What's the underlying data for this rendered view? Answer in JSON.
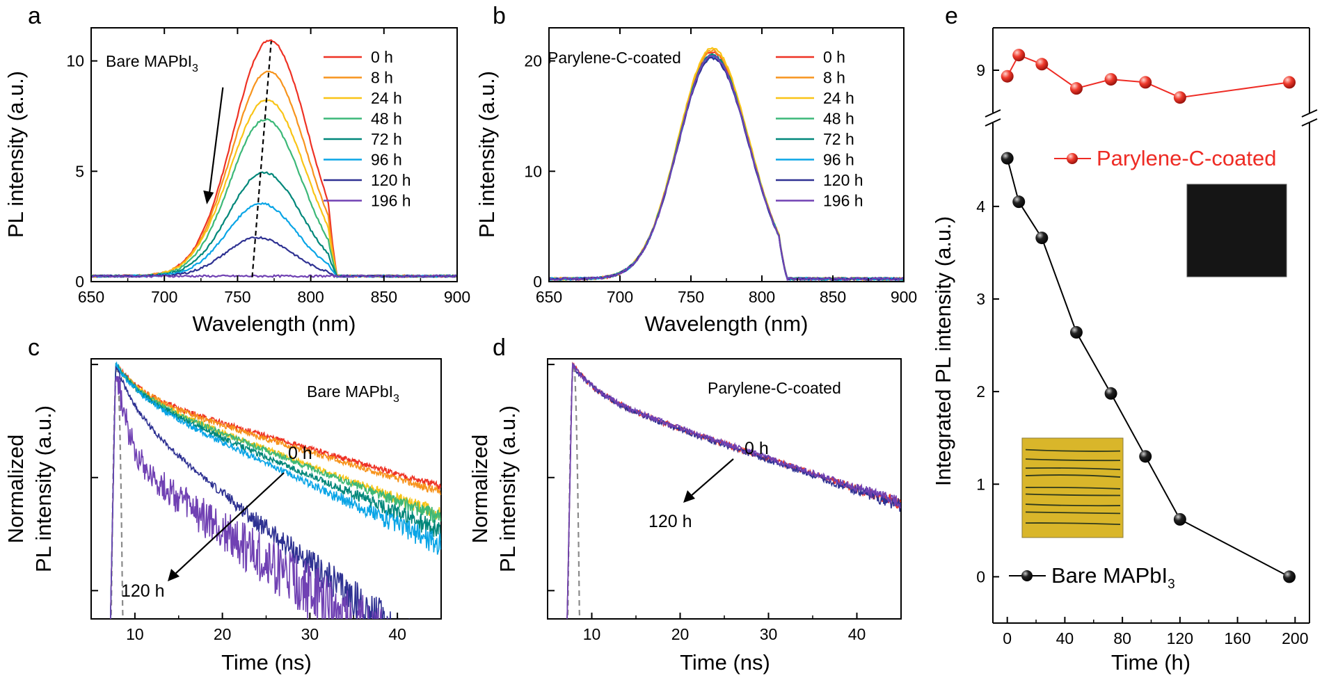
{
  "panel_letters": [
    "a",
    "b",
    "c",
    "d",
    "e"
  ],
  "sample_labels": {
    "bare_main": "Bare MAPbI",
    "bare_sub": "3",
    "coated": "Parylene-C-coated"
  },
  "colors": {
    "0 h": "#ee3224",
    "8 h": "#f7941d",
    "24 h": "#f9c416",
    "48 h": "#3cb878",
    "72 h": "#00877a",
    "96 h": "#0aa5e6",
    "120 h": "#2e3192",
    "196 h": "#7041b3",
    "irf": "#8a8a8a",
    "coated_series": "#ee2b24",
    "bare_series": "#000000",
    "photo_bare": "#d9b62a",
    "photo_coated": "#151515"
  },
  "chart_data": [
    {
      "panel": "a",
      "type": "line",
      "xlabel": "Wavelength (nm)",
      "ylabel": "PL intensity (a.u.)",
      "xlim": [
        650,
        900
      ],
      "ylim": [
        0,
        11.5
      ],
      "xticks": [
        650,
        700,
        750,
        800,
        850,
        900
      ],
      "yticks": [
        0,
        5,
        10
      ],
      "legend": [
        "0 h",
        "8 h",
        "24 h",
        "48 h",
        "72 h",
        "96 h",
        "120 h",
        "196 h"
      ],
      "peaks": [
        {
          "time": "0 h",
          "peak_nm": 772,
          "height": 10.7,
          "width": 25
        },
        {
          "time": "8 h",
          "peak_nm": 771,
          "height": 9.3,
          "width": 25
        },
        {
          "time": "24 h",
          "peak_nm": 770,
          "height": 8.0,
          "width": 25
        },
        {
          "time": "48 h",
          "peak_nm": 769,
          "height": 7.1,
          "width": 24
        },
        {
          "time": "72 h",
          "peak_nm": 768,
          "height": 4.7,
          "width": 24
        },
        {
          "time": "96 h",
          "peak_nm": 766,
          "height": 3.3,
          "width": 23
        },
        {
          "time": "120 h",
          "peak_nm": 764,
          "height": 1.75,
          "width": 22
        },
        {
          "time": "196 h",
          "peak_nm": 760,
          "height": 0,
          "width": 20
        }
      ],
      "baseline": 0.25,
      "peak_trend_line": [
        [
          760,
          0.2
        ],
        [
          773,
          10.9
        ]
      ],
      "arrow": [
        [
          740,
          8.8
        ],
        [
          729,
          3.5
        ]
      ],
      "label": "Bare MAPbI3"
    },
    {
      "panel": "b",
      "type": "line",
      "xlabel": "Wavelength (nm)",
      "ylabel": "PL intensity (a.u.)",
      "xlim": [
        650,
        900
      ],
      "ylim": [
        0,
        23
      ],
      "xticks": [
        650,
        700,
        750,
        800,
        850,
        900
      ],
      "yticks": [
        0,
        10,
        20
      ],
      "legend": [
        "0 h",
        "8 h",
        "24 h",
        "48 h",
        "72 h",
        "96 h",
        "120 h",
        "196 h"
      ],
      "peaks": [
        {
          "time": "0 h",
          "peak_nm": 765,
          "height": 20.6
        },
        {
          "time": "8 h",
          "peak_nm": 765,
          "height": 20.7
        },
        {
          "time": "24 h",
          "peak_nm": 765,
          "height": 20.9
        },
        {
          "time": "48 h",
          "peak_nm": 765,
          "height": 20.2
        },
        {
          "time": "72 h",
          "peak_nm": 765,
          "height": 20.3
        },
        {
          "time": "96 h",
          "peak_nm": 765,
          "height": 20.1
        },
        {
          "time": "120 h",
          "peak_nm": 765,
          "height": 20.0
        },
        {
          "time": "196 h",
          "peak_nm": 765,
          "height": 20.2
        }
      ],
      "baseline": 0.25,
      "label": "Parylene-C-coated"
    },
    {
      "panel": "c",
      "type": "line",
      "xlabel": "Time (ns)",
      "ylabel_lines": [
        "Normalized",
        "PL intensity (a.u.)"
      ],
      "xlim": [
        5,
        45
      ],
      "xticks": [
        10,
        20,
        30,
        40
      ],
      "log_y": true,
      "ylim_log10": [
        -2.25,
        0.05
      ],
      "decay_series": [
        {
          "time": "0 h",
          "endpoint_log10": -1.08
        },
        {
          "time": "8 h",
          "endpoint_log10": -1.13
        },
        {
          "time": "24 h",
          "endpoint_log10": -1.33
        },
        {
          "time": "48 h",
          "endpoint_log10": -1.36
        },
        {
          "time": "72 h",
          "endpoint_log10": -1.48
        },
        {
          "time": "96 h",
          "endpoint_log10": -1.6
        },
        {
          "time": "120 h",
          "endpoint_log10": -2.25
        },
        {
          "time": "196 h",
          "endpoint_log10": -2.25
        }
      ],
      "annotations": [
        "0 h",
        "120 h"
      ],
      "label": "Bare MAPbI3"
    },
    {
      "panel": "d",
      "type": "line",
      "xlabel": "Time (ns)",
      "ylabel_lines": [
        "Normalized",
        "PL intensity (a.u.)"
      ],
      "xlim": [
        5,
        45
      ],
      "xticks": [
        10,
        20,
        30,
        40
      ],
      "log_y": true,
      "ylim_log10": [
        -2.25,
        0.05
      ],
      "decay_series": [
        {
          "time": "0 h",
          "endpoint_log10": -1.23
        },
        {
          "time": "120 h",
          "endpoint_log10": -1.25
        },
        {
          "time": "196 h",
          "endpoint_log10": -1.22
        }
      ],
      "annotations": [
        "0 h",
        "120 h"
      ],
      "label": "Parylene-C-coated"
    },
    {
      "panel": "e",
      "type": "scatter",
      "xlabel": "Time (h)",
      "ylabel": "Integrated PL intensity (a.u.)",
      "xlim": [
        -10,
        210
      ],
      "xticks": [
        0,
        40,
        80,
        120,
        160,
        200
      ],
      "y_axis_break": true,
      "lower_ylim": [
        -0.5,
        4.9
      ],
      "lower_yticks": [
        0,
        1,
        2,
        3,
        4
      ],
      "upper_ylim": [
        8.3,
        9.7
      ],
      "upper_yticks": [
        9
      ],
      "series": [
        {
          "name": "Parylene-C-coated",
          "x": [
            0,
            8,
            24,
            48,
            72,
            96,
            120,
            196
          ],
          "y": [
            8.9,
            9.25,
            9.1,
            8.7,
            8.85,
            8.8,
            8.55,
            8.8
          ]
        },
        {
          "name": "Bare MAPbI3",
          "x": [
            0,
            8,
            24,
            48,
            72,
            96,
            120,
            196
          ],
          "y": [
            4.52,
            4.05,
            3.66,
            2.64,
            1.98,
            1.3,
            0.62,
            0.0
          ]
        }
      ]
    }
  ]
}
